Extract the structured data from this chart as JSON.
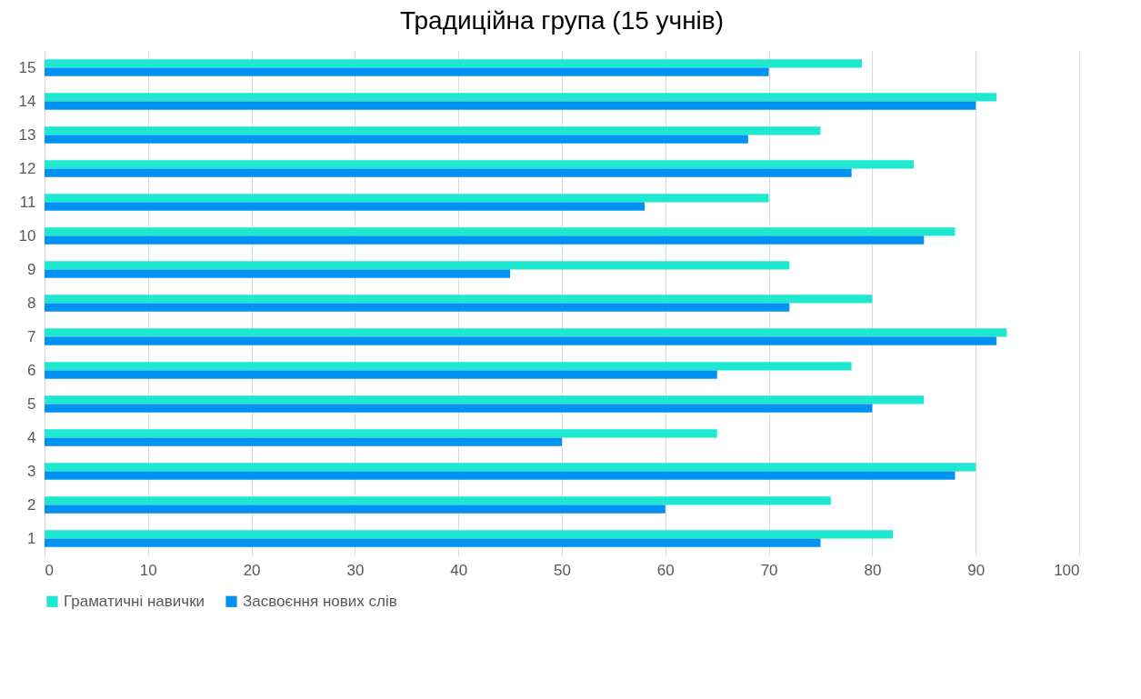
{
  "chart_data": {
    "type": "bar",
    "orientation": "horizontal",
    "title": "Традиційна група (15 учнів)",
    "categories": [
      "15",
      "14",
      "13",
      "12",
      "11",
      "10",
      "9",
      "8",
      "7",
      "6",
      "5",
      "4",
      "3",
      "2",
      "1"
    ],
    "series": [
      {
        "name": "Граматичні навички",
        "color": "#1ee8d0",
        "values": [
          79,
          92,
          75,
          84,
          70,
          88,
          72,
          80,
          93,
          78,
          85,
          65,
          90,
          76,
          82
        ]
      },
      {
        "name": "Засвоєння нових слів",
        "color": "#0092f2",
        "values": [
          70,
          90,
          68,
          78,
          58,
          85,
          45,
          72,
          92,
          65,
          80,
          50,
          88,
          60,
          75
        ]
      }
    ],
    "xlim": [
      0,
      100
    ],
    "xticks": [
      0,
      10,
      20,
      30,
      40,
      50,
      60,
      70,
      80,
      90,
      100
    ],
    "grid": "x",
    "legend": "bottom"
  }
}
